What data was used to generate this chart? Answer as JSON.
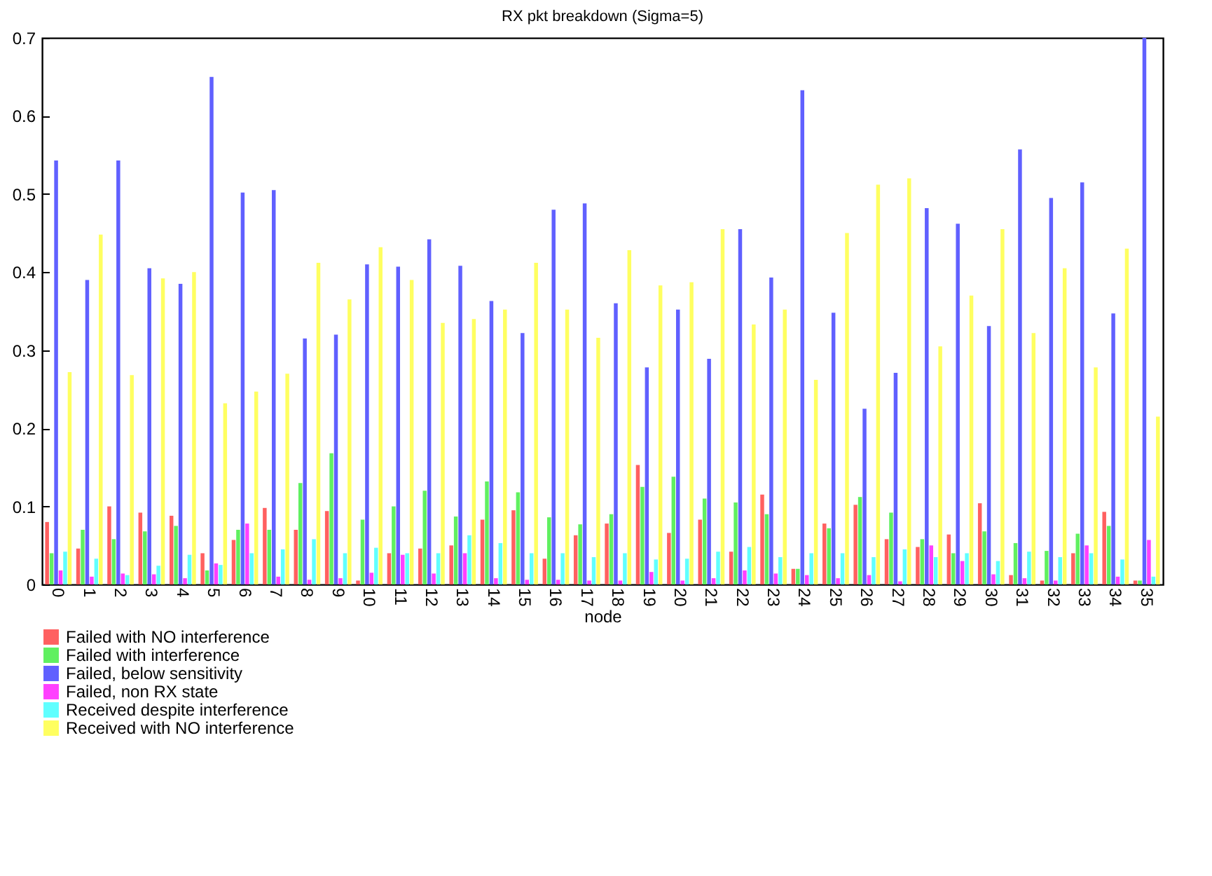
{
  "chart_data": {
    "type": "bar",
    "title": "RX pkt breakdown (Sigma=5)",
    "xlabel": "node",
    "categories": [
      "0",
      "1",
      "2",
      "3",
      "4",
      "5",
      "6",
      "7",
      "8",
      "9",
      "10",
      "11",
      "12",
      "13",
      "14",
      "15",
      "16",
      "17",
      "18",
      "19",
      "20",
      "21",
      "22",
      "23",
      "24",
      "25",
      "26",
      "27",
      "28",
      "29",
      "30",
      "31",
      "32",
      "33",
      "34",
      "35"
    ],
    "series": [
      {
        "name": "Failed with NO interference",
        "color": "#ff6060",
        "values": [
          0.08,
          0.046,
          0.1,
          0.092,
          0.088,
          0.04,
          0.057,
          0.098,
          0.07,
          0.094,
          0.005,
          0.04,
          0.046,
          0.05,
          0.083,
          0.095,
          0.033,
          0.063,
          0.078,
          0.153,
          0.066,
          0.083,
          0.042,
          0.115,
          0.02,
          0.078,
          0.102,
          0.058,
          0.048,
          0.064,
          0.104,
          0.012,
          0.005,
          0.04,
          0.093,
          0.005
        ]
      },
      {
        "name": "Failed with interference",
        "color": "#60f060",
        "values": [
          0.04,
          0.07,
          0.058,
          0.068,
          0.075,
          0.018,
          0.07,
          0.07,
          0.13,
          0.168,
          0.083,
          0.1,
          0.12,
          0.087,
          0.132,
          0.118,
          0.086,
          0.077,
          0.09,
          0.125,
          0.138,
          0.11,
          0.105,
          0.09,
          0.02,
          0.072,
          0.112,
          0.092,
          0.058,
          0.04,
          0.068,
          0.053,
          0.043,
          0.065,
          0.075,
          0.005
        ]
      },
      {
        "name": "Failed, below sensitivity",
        "color": "#6060ff",
        "values": [
          0.543,
          0.39,
          0.543,
          0.405,
          0.385,
          0.65,
          0.502,
          0.505,
          0.315,
          0.32,
          0.41,
          0.407,
          0.442,
          0.408,
          0.363,
          0.322,
          0.48,
          0.488,
          0.36,
          0.278,
          0.352,
          0.289,
          0.455,
          0.393,
          0.633,
          0.348,
          0.225,
          0.271,
          0.482,
          0.462,
          0.331,
          0.557,
          0.495,
          0.515,
          0.347,
          0.7
        ]
      },
      {
        "name": "Failed, non RX state",
        "color": "#ff40ff",
        "values": [
          0.018,
          0.01,
          0.014,
          0.013,
          0.008,
          0.027,
          0.078,
          0.01,
          0.006,
          0.008,
          0.015,
          0.038,
          0.014,
          0.04,
          0.008,
          0.006,
          0.006,
          0.005,
          0.005,
          0.016,
          0.005,
          0.008,
          0.018,
          0.014,
          0.012,
          0.008,
          0.012,
          0.004,
          0.05,
          0.03,
          0.013,
          0.008,
          0.005,
          0.05,
          0.01,
          0.057
        ]
      },
      {
        "name": "Received despite interference",
        "color": "#60ffff",
        "values": [
          0.042,
          0.033,
          0.012,
          0.024,
          0.038,
          0.025,
          0.04,
          0.045,
          0.058,
          0.04,
          0.047,
          0.04,
          0.04,
          0.063,
          0.053,
          0.04,
          0.04,
          0.035,
          0.04,
          0.032,
          0.033,
          0.042,
          0.048,
          0.035,
          0.04,
          0.04,
          0.035,
          0.045,
          0.035,
          0.04,
          0.03,
          0.042,
          0.035,
          0.04,
          0.032,
          0.01
        ]
      },
      {
        "name": "Received with NO interference",
        "color": "#ffff60",
        "values": [
          0.272,
          0.448,
          0.268,
          0.392,
          0.4,
          0.232,
          0.247,
          0.27,
          0.412,
          0.365,
          0.432,
          0.39,
          0.335,
          0.34,
          0.352,
          0.412,
          0.352,
          0.316,
          0.428,
          0.383,
          0.387,
          0.455,
          0.333,
          0.352,
          0.262,
          0.45,
          0.512,
          0.52,
          0.305,
          0.37,
          0.455,
          0.322,
          0.405,
          0.278,
          0.43,
          0.215
        ]
      }
    ],
    "ylim": [
      0,
      0.7
    ],
    "yticks": [
      0,
      0.1,
      0.2,
      0.3,
      0.4,
      0.5,
      0.6,
      0.7
    ],
    "legend": "bottom"
  }
}
